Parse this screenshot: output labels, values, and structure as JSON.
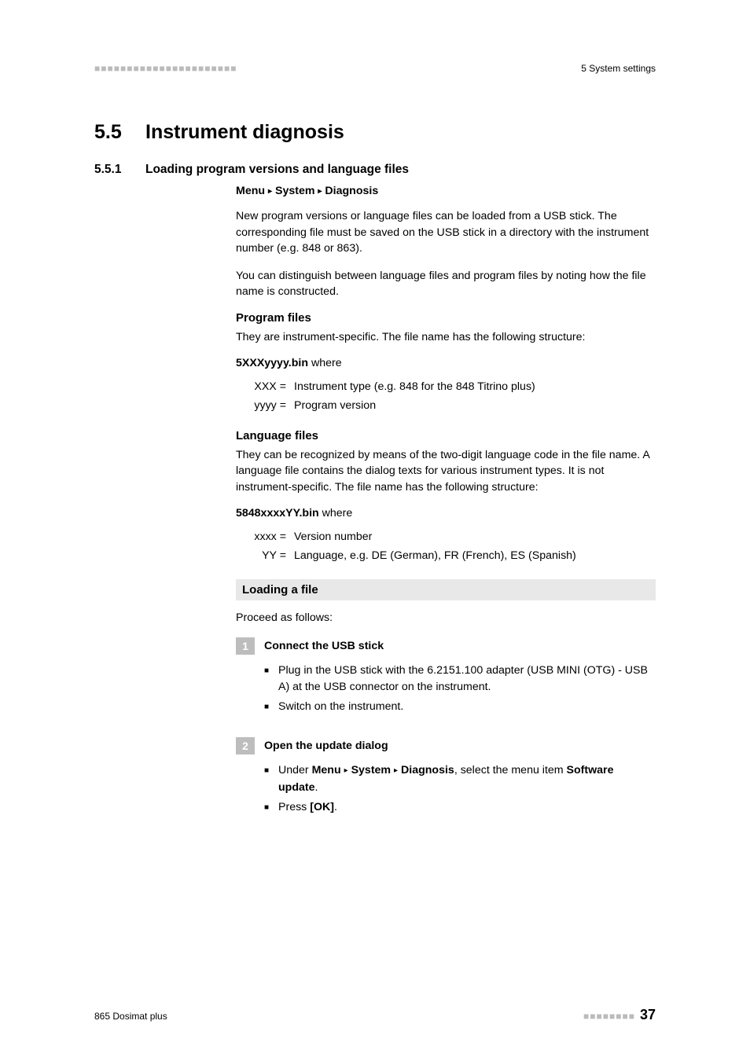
{
  "header": {
    "left_dots": "■■■■■■■■■■■■■■■■■■■■■■",
    "right": "5 System settings"
  },
  "section": {
    "num": "5.5",
    "title": "Instrument diagnosis"
  },
  "subsection": {
    "num": "5.5.1",
    "title": "Loading program versions and language files"
  },
  "breadcrumb": {
    "a": "Menu",
    "b": "System",
    "c": "Diagnosis",
    "tri": "▸"
  },
  "intro": {
    "p1": "New program versions or language files can be loaded from a USB stick. The corresponding file must be saved on the USB stick in a directory with the instrument number (e.g. 848 or 863).",
    "p2": "You can distinguish between language files and program files by noting how the file name is constructed."
  },
  "program_files": {
    "heading": "Program files",
    "p1": "They are instrument-specific. The file name has the following structure:",
    "bin": "5XXXyyyy.bin",
    "where": " where",
    "rows": [
      {
        "k": "XXX =",
        "v": "Instrument type (e.g. 848 for the 848 Titrino plus)"
      },
      {
        "k": "yyyy =",
        "v": "Program version"
      }
    ]
  },
  "language_files": {
    "heading": "Language files",
    "p1": "They can be recognized by means of the two-digit language code in the file name. A language file contains the dialog texts for various instrument types. It is not instrument-specific. The file name has the following structure:",
    "bin": "5848xxxxYY.bin",
    "where": " where",
    "rows": [
      {
        "k": "xxxx =",
        "v": "Version number"
      },
      {
        "k": "YY =",
        "v": "Language, e.g. DE (German), FR (French), ES (Spanish)"
      }
    ]
  },
  "loading": {
    "heading": "Loading a file",
    "proceed": "Proceed as follows:"
  },
  "steps": [
    {
      "n": "1",
      "title": "Connect the USB stick",
      "bullets": [
        {
          "text": "Plug in the USB stick with the 6.2151.100 adapter (USB MINI (OTG) - USB A) at the USB connector on the instrument."
        },
        {
          "text": "Switch on the instrument."
        }
      ]
    },
    {
      "n": "2",
      "title": "Open the update dialog",
      "bullets": [
        {
          "pre": "Under ",
          "mb_a": "Menu",
          "mb_b": "System",
          "mb_c": "Diagnosis",
          "mid": ", select the menu item ",
          "mb_d": "Software update",
          "post": "."
        },
        {
          "pre": "Press ",
          "mb_a": "[OK]",
          "post": "."
        }
      ]
    }
  ],
  "bullet_mark": "■",
  "footer": {
    "left": "865 Dosimat plus",
    "dots": "■■■■■■■■",
    "page": "37"
  }
}
